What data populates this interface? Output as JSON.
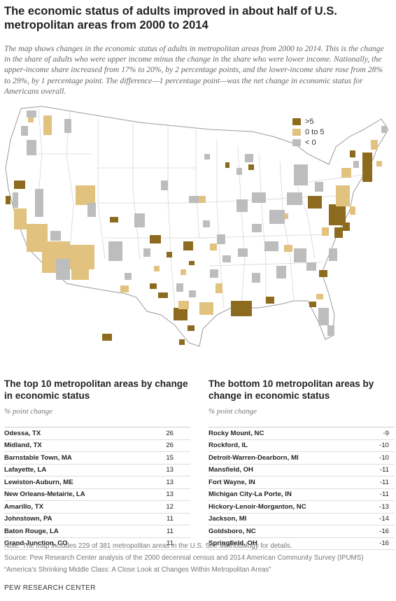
{
  "title": "The economic status of adults improved in about half of U.S. metropolitan areas from 2000 to 2014",
  "subtitle": "The map shows changes in the economic status of adults in metropolitan areas from 2000 to 2014. This is the change in the share of adults who were upper income minus the change in the share who were lower income. Nationally, the upper-income share increased from 17% to 20%, by 2 percentage points, and the lower-income share rose from 28% to 29%, by 1 percentage point. The difference—1 percentage point—was the net change in economic status for Americans overall.",
  "legend": [
    {
      "label": ">5",
      "color": "#8c6b1f"
    },
    {
      "label": "0 to 5",
      "color": "#e1c27f"
    },
    {
      "label": "< 0",
      "color": "#bdbdbd"
    }
  ],
  "colors": {
    "state_fill": "#ffffff",
    "state_border": "#cfcfcf",
    "coast": "#9a9a9a"
  },
  "top_table": {
    "title": "The top 10 metropolitan areas by change in economic status",
    "subtitle": "% point change",
    "rows": [
      {
        "name": "Odessa, TX",
        "value": "26"
      },
      {
        "name": "Midland, TX",
        "value": "26"
      },
      {
        "name": "Barnstable Town, MA",
        "value": "15"
      },
      {
        "name": "Lafayette, LA",
        "value": "13"
      },
      {
        "name": "Lewiston-Auburn, ME",
        "value": "13"
      },
      {
        "name": "New Orleans-Metairie, LA",
        "value": "13"
      },
      {
        "name": "Amarillo, TX",
        "value": "12"
      },
      {
        "name": "Johnstown, PA",
        "value": "11"
      },
      {
        "name": "Baton Rouge, LA",
        "value": "11"
      },
      {
        "name": "Grand Junction, CO",
        "value": "11"
      }
    ]
  },
  "bottom_table": {
    "title": "The bottom 10 metropolitan areas by change in economic status",
    "subtitle": "% point change",
    "rows": [
      {
        "name": "Rocky Mount, NC",
        "value": "-9"
      },
      {
        "name": "Rockford, IL",
        "value": "-10"
      },
      {
        "name": "Detroit-Warren-Dearborn, MI",
        "value": "-10"
      },
      {
        "name": "Mansfield, OH",
        "value": "-11"
      },
      {
        "name": "Fort Wayne, IN",
        "value": "-11"
      },
      {
        "name": "Michigan City-La Porte, IN",
        "value": "-11"
      },
      {
        "name": "Hickory-Lenoir-Morganton, NC",
        "value": "-13"
      },
      {
        "name": "Jackson, MI",
        "value": "-14"
      },
      {
        "name": "Goldsboro, NC",
        "value": "-16"
      },
      {
        "name": "Springfield, OH",
        "value": "-16"
      }
    ]
  },
  "notes": {
    "note": "Note: The map includes 229 of 381 metropolitan areas in the U.S. See Methodology for details.",
    "source": "Source: Pew Research Center analysis of the 2000 decennial census and 2014 American Community Survey (IPUMS)",
    "report": "“America’s Shrinking Middle Class: A Close Look at Changes Within Metropolitan Areas”"
  },
  "brand": "PEW RESEARCH CENTER"
}
